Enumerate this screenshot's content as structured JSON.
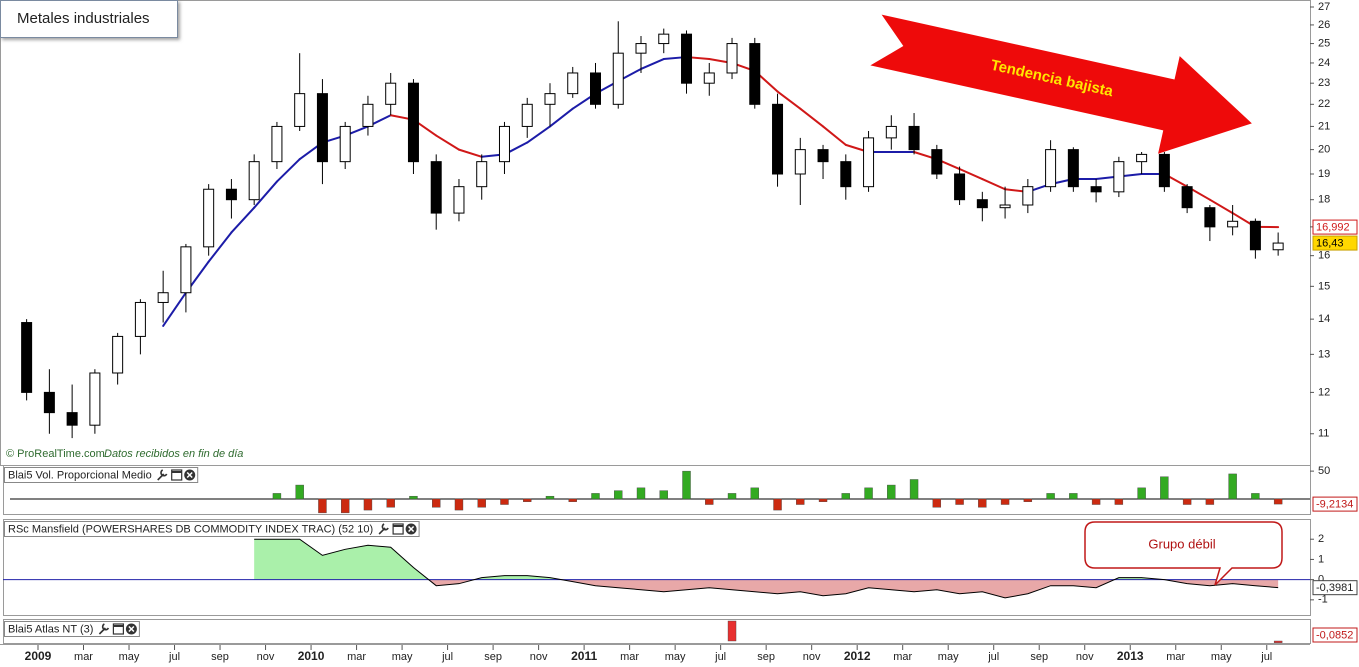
{
  "chart_data": [
    {
      "type": "candlestick",
      "title": "Metales industriales",
      "annotation": "Tendencia bajista",
      "source": "© ProRealTime.com",
      "source_note": "Datos recibidos en fin de día",
      "log": true,
      "ylim": [
        10.3,
        27.4
      ],
      "yticks": [
        11,
        12,
        13,
        14,
        15,
        16,
        17,
        18,
        19,
        20,
        21,
        22,
        23,
        24,
        25,
        26,
        27
      ],
      "xlim": [
        -1.67,
        55.9
      ],
      "x": [
        -0.5,
        0.5,
        1.5,
        2.5,
        3.5,
        4.5,
        5.5,
        6.5,
        7.5,
        8.5,
        9.5,
        10.5,
        11.5,
        12.5,
        13.5,
        14.5,
        15.5,
        16.5,
        17.5,
        18.5,
        19.5,
        20.5,
        21.5,
        22.5,
        23.5,
        24.5,
        25.5,
        26.5,
        27.5,
        28.5,
        29.5,
        30.5,
        31.5,
        32.5,
        33.5,
        34.5,
        35.5,
        36.5,
        37.5,
        38.5,
        39.5,
        40.5,
        41.5,
        42.5,
        43.5,
        44.5,
        45.5,
        46.5,
        47.5,
        48.5,
        49.5,
        50.5,
        51.5,
        52.5,
        53.5,
        54.5
      ],
      "open": [
        13.9,
        12.0,
        11.5,
        11.2,
        12.5,
        13.5,
        14.5,
        14.8,
        16.3,
        18.4,
        18.0,
        19.5,
        21.0,
        22.5,
        19.5,
        21.0,
        22.0,
        23.0,
        19.5,
        17.5,
        18.5,
        19.5,
        21.0,
        22.0,
        22.5,
        23.5,
        22.0,
        24.5,
        25.0,
        25.5,
        23.0,
        23.5,
        25.0,
        22.0,
        19.0,
        20.0,
        19.5,
        18.5,
        20.5,
        21.0,
        20.0,
        19.0,
        18.0,
        17.7,
        17.8,
        18.5,
        20.0,
        18.5,
        18.3,
        19.5,
        19.8,
        18.5,
        17.7,
        17.0,
        17.2,
        16.2
      ],
      "high": [
        14.0,
        12.6,
        12.2,
        12.6,
        13.6,
        14.6,
        15.5,
        16.4,
        18.6,
        18.8,
        19.8,
        21.2,
        24.5,
        23.2,
        21.2,
        22.4,
        23.5,
        23.2,
        19.8,
        18.8,
        19.8,
        21.2,
        22.3,
        23.0,
        23.8,
        24.0,
        26.2,
        25.4,
        25.8,
        25.7,
        24.0,
        25.3,
        25.3,
        22.5,
        20.5,
        20.2,
        19.8,
        20.8,
        21.5,
        21.6,
        20.2,
        19.3,
        18.3,
        18.5,
        18.8,
        20.4,
        20.1,
        18.8,
        19.7,
        19.9,
        19.9,
        18.6,
        17.8,
        17.8,
        17.3,
        16.8
      ],
      "low": [
        11.8,
        11.0,
        10.9,
        11.0,
        12.2,
        13.0,
        13.9,
        14.2,
        16.0,
        17.3,
        17.8,
        19.2,
        20.8,
        18.6,
        19.2,
        20.6,
        21.5,
        19.0,
        16.9,
        17.2,
        18.0,
        19.0,
        20.5,
        21.0,
        22.3,
        21.8,
        21.8,
        23.5,
        24.5,
        22.5,
        22.4,
        23.2,
        21.8,
        18.5,
        17.8,
        18.8,
        18.0,
        18.3,
        20.0,
        19.8,
        18.8,
        17.8,
        17.2,
        17.3,
        17.5,
        18.3,
        18.3,
        17.9,
        18.1,
        19.0,
        18.3,
        17.5,
        16.5,
        16.7,
        15.9,
        16.0
      ],
      "close": [
        12.0,
        11.5,
        11.2,
        12.5,
        13.5,
        14.5,
        14.8,
        16.3,
        18.4,
        18.0,
        19.5,
        21.0,
        22.5,
        19.5,
        21.0,
        22.0,
        23.0,
        19.5,
        17.5,
        18.5,
        19.5,
        21.0,
        22.0,
        22.5,
        23.5,
        22.0,
        24.5,
        25.0,
        25.5,
        23.0,
        23.5,
        25.0,
        22.0,
        19.0,
        20.0,
        19.5,
        18.5,
        20.5,
        21.0,
        20.0,
        19.0,
        18.0,
        17.7,
        17.8,
        18.5,
        20.0,
        18.5,
        18.3,
        19.5,
        19.8,
        18.5,
        17.7,
        17.0,
        17.2,
        16.2,
        16.43
      ],
      "up_color": "#ffffff",
      "down_color": "#000000",
      "close_label": "16,43",
      "close_label_color": "#ffd700",
      "moving_average": {
        "up_color": "#1c1ca8",
        "down_color": "#d01818",
        "last_label": "16,992",
        "values": [
          null,
          null,
          null,
          null,
          null,
          null,
          13.8,
          14.8,
          15.8,
          16.8,
          17.7,
          18.7,
          19.6,
          20.3,
          20.6,
          21,
          21.5,
          21.3,
          20.6,
          20,
          19.7,
          19.8,
          20.3,
          21,
          21.8,
          22.5,
          23.1,
          23.7,
          24.2,
          24.3,
          24.2,
          24.0,
          23.6,
          22.6,
          21.8,
          21.0,
          20.2,
          19.9,
          19.9,
          19.9,
          19.6,
          19.2,
          18.8,
          18.4,
          18.3,
          18.6,
          18.8,
          18.8,
          18.9,
          19.0,
          19.0,
          18.5,
          18.0,
          17.5,
          17.0,
          16.992
        ]
      }
    },
    {
      "type": "bar",
      "title": "Blai5 Vol. Proporcional Medio",
      "ylim": [
        -27,
        61
      ],
      "yticks": [
        50
      ],
      "xlim": [
        -1.67,
        55.9
      ],
      "x": [
        -0.5,
        0.5,
        1.5,
        2.5,
        3.5,
        4.5,
        5.5,
        6.5,
        7.5,
        8.5,
        9.5,
        10.5,
        11.5,
        12.5,
        13.5,
        14.5,
        15.5,
        16.5,
        17.5,
        18.5,
        19.5,
        20.5,
        21.5,
        22.5,
        23.5,
        24.5,
        25.5,
        26.5,
        27.5,
        28.5,
        29.5,
        30.5,
        31.5,
        32.5,
        33.5,
        34.5,
        35.5,
        36.5,
        37.5,
        38.5,
        39.5,
        40.5,
        41.5,
        42.5,
        43.5,
        44.5,
        45.5,
        46.5,
        47.5,
        48.5,
        49.5,
        50.5,
        51.5,
        52.5,
        53.5,
        54.5
      ],
      "values": [
        null,
        null,
        null,
        null,
        null,
        null,
        null,
        null,
        null,
        null,
        null,
        10,
        25,
        -25,
        -25,
        -20,
        -15,
        5,
        -15,
        -20,
        -15,
        -10,
        -5,
        5,
        -5,
        10,
        15,
        20,
        15,
        50,
        -10,
        10,
        20,
        -20,
        -10,
        -5,
        10,
        20,
        25,
        35,
        -15,
        -10,
        -15,
        -10,
        -5,
        10,
        10,
        -10,
        -10,
        20,
        40,
        -10,
        -10,
        45,
        10,
        -9.2134
      ],
      "up_color": "#33aa22",
      "down_color": "#cc2a10",
      "zero_line_color": "#000000",
      "last_label": "-9,2134"
    },
    {
      "type": "area",
      "title": "RSc Mansfield (POWERSHARES DB COMMODITY INDEX TRAC) (52 10)",
      "callout": "Grupo débil",
      "ylim": [
        -1.75,
        3
      ],
      "yticks": [
        2,
        1,
        0,
        -1
      ],
      "xlim": [
        -1.67,
        55.9
      ],
      "x": [
        -0.5,
        0.5,
        1.5,
        2.5,
        3.5,
        4.5,
        5.5,
        6.5,
        7.5,
        8.5,
        9.5,
        10.5,
        11.5,
        12.5,
        13.5,
        14.5,
        15.5,
        16.5,
        17.5,
        18.5,
        19.5,
        20.5,
        21.5,
        22.5,
        23.5,
        24.5,
        25.5,
        26.5,
        27.5,
        28.5,
        29.5,
        30.5,
        31.5,
        32.5,
        33.5,
        34.5,
        35.5,
        36.5,
        37.5,
        38.5,
        39.5,
        40.5,
        41.5,
        42.5,
        43.5,
        44.5,
        45.5,
        46.5,
        47.5,
        48.5,
        49.5,
        50.5,
        51.5,
        52.5,
        53.5,
        54.5
      ],
      "values": [
        null,
        null,
        null,
        null,
        null,
        null,
        null,
        null,
        null,
        null,
        2,
        2,
        2,
        1.2,
        1.5,
        1.7,
        1.6,
        0.6,
        -0.3,
        -0.2,
        0.1,
        0.2,
        0.2,
        0.1,
        -0.1,
        -0.3,
        -0.4,
        -0.5,
        -0.6,
        -0.5,
        -0.4,
        -0.5,
        -0.6,
        -0.7,
        -0.6,
        -0.8,
        -0.7,
        -0.4,
        -0.5,
        -0.6,
        -0.5,
        -0.7,
        -0.6,
        -0.9,
        -0.7,
        -0.3,
        -0.3,
        -0.4,
        0.1,
        0.1,
        0,
        -0.2,
        -0.3,
        -0.2,
        -0.3,
        -0.3981
      ],
      "line_color": "#000000",
      "up_color": "#aaf0aa",
      "down_color": "#e8a8a8",
      "zero_line_color": "#2222aa",
      "last_label": "-0,3981"
    },
    {
      "type": "bar",
      "title": "Blai5 Atlas NT (3)",
      "ylim": [
        -0.1,
        1.1
      ],
      "xlim": [
        -1.67,
        55.9
      ],
      "x": [
        -0.5,
        0.5,
        1.5,
        2.5,
        3.5,
        4.5,
        5.5,
        6.5,
        7.5,
        8.5,
        9.5,
        10.5,
        11.5,
        12.5,
        13.5,
        14.5,
        15.5,
        16.5,
        17.5,
        18.5,
        19.5,
        20.5,
        21.5,
        22.5,
        23.5,
        24.5,
        25.5,
        26.5,
        27.5,
        28.5,
        29.5,
        30.5,
        31.5,
        32.5,
        33.5,
        34.5,
        35.5,
        36.5,
        37.5,
        38.5,
        39.5,
        40.5,
        41.5,
        42.5,
        43.5,
        44.5,
        45.5,
        46.5,
        47.5,
        48.5,
        49.5,
        50.5,
        51.5,
        52.5,
        53.5,
        54.5
      ],
      "values": [
        null,
        null,
        null,
        null,
        null,
        null,
        null,
        null,
        null,
        null,
        null,
        null,
        null,
        null,
        null,
        null,
        null,
        null,
        null,
        null,
        null,
        null,
        null,
        null,
        null,
        null,
        null,
        null,
        null,
        null,
        null,
        1,
        null,
        null,
        null,
        null,
        null,
        null,
        null,
        null,
        null,
        null,
        null,
        null,
        null,
        null,
        null,
        null,
        null,
        null,
        null,
        null,
        null,
        null,
        null,
        -0.0852
      ],
      "color": "#e83030",
      "last_label": "-0,0852",
      "xticks": [
        {
          "value": 0,
          "label": "2009"
        },
        {
          "value": 2,
          "label": "mar"
        },
        {
          "value": 4,
          "label": "may"
        },
        {
          "value": 6,
          "label": "jul"
        },
        {
          "value": 8,
          "label": "sep"
        },
        {
          "value": 10,
          "label": "nov"
        },
        {
          "value": 12,
          "label": "2010"
        },
        {
          "value": 14,
          "label": "mar"
        },
        {
          "value": 16,
          "label": "may"
        },
        {
          "value": 18,
          "label": "jul"
        },
        {
          "value": 20,
          "label": "sep"
        },
        {
          "value": 22,
          "label": "nov"
        },
        {
          "value": 24,
          "label": "2011"
        },
        {
          "value": 26,
          "label": "mar"
        },
        {
          "value": 28,
          "label": "may"
        },
        {
          "value": 30,
          "label": "jul"
        },
        {
          "value": 32,
          "label": "sep"
        },
        {
          "value": 34,
          "label": "nov"
        },
        {
          "value": 36,
          "label": "2012"
        },
        {
          "value": 38,
          "label": "mar"
        },
        {
          "value": 40,
          "label": "may"
        },
        {
          "value": 42,
          "label": "jul"
        },
        {
          "value": 44,
          "label": "sep"
        },
        {
          "value": 46,
          "label": "nov"
        },
        {
          "value": 48,
          "label": "2013"
        },
        {
          "value": 50,
          "label": "mar"
        },
        {
          "value": 52,
          "label": "may"
        },
        {
          "value": 54,
          "label": "jul"
        }
      ]
    }
  ]
}
